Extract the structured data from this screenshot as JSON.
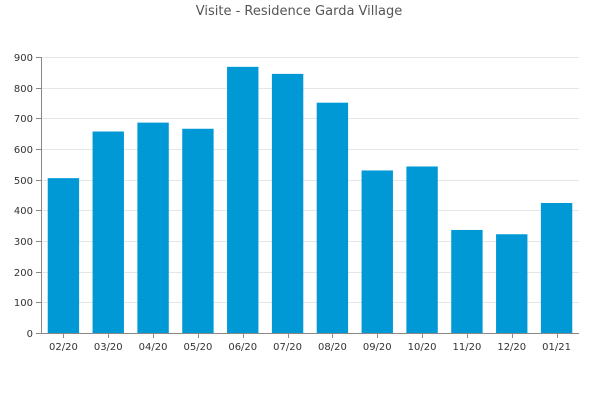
{
  "chart_data": {
    "type": "bar",
    "title": "Visite - Residence Garda Village",
    "xlabel": "",
    "ylabel": "",
    "categories": [
      "02/20",
      "03/20",
      "04/20",
      "05/20",
      "06/20",
      "07/20",
      "08/20",
      "09/20",
      "10/20",
      "11/20",
      "12/20",
      "01/21"
    ],
    "values": [
      505,
      657,
      686,
      666,
      868,
      845,
      751,
      530,
      543,
      336,
      322,
      424
    ],
    "ylim": [
      0,
      900
    ],
    "yticks": [
      0,
      100,
      200,
      300,
      400,
      500,
      600,
      700,
      800,
      900
    ],
    "grid": true,
    "legend": "none",
    "bar_color": "#0099d6"
  }
}
